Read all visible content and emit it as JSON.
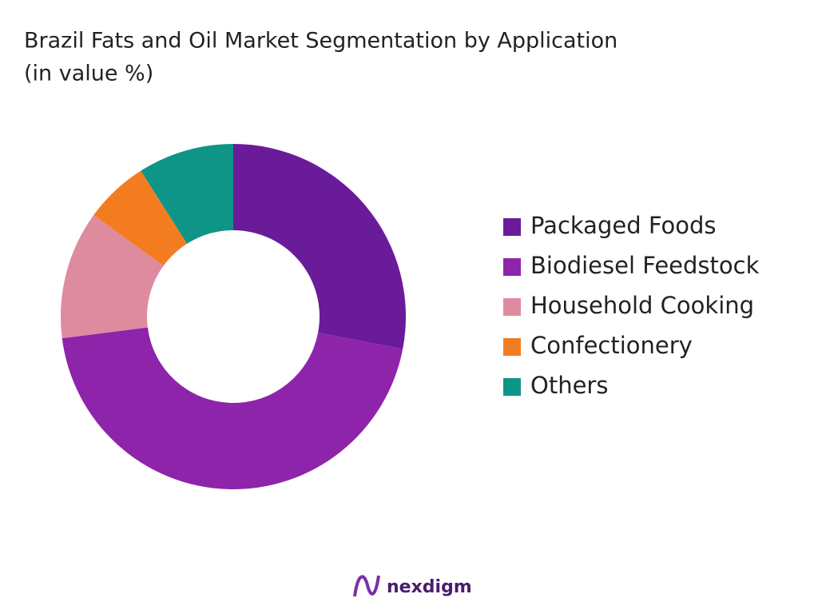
{
  "chart_data": {
    "type": "pie",
    "title": "Brazil Fats and Oil Market Segmentation by Application",
    "subtitle": "(in value %)",
    "categories": [
      "Packaged Foods",
      "Biodiesel Feedstock",
      "Household Cooking",
      "Confectionery",
      "Others"
    ],
    "values": [
      28,
      45,
      12,
      6,
      9
    ],
    "colors": [
      "#6a1b9a",
      "#8e24aa",
      "#de8ba0",
      "#f47c20",
      "#0f9488"
    ],
    "legend": "right",
    "brand": "nexdigm"
  }
}
